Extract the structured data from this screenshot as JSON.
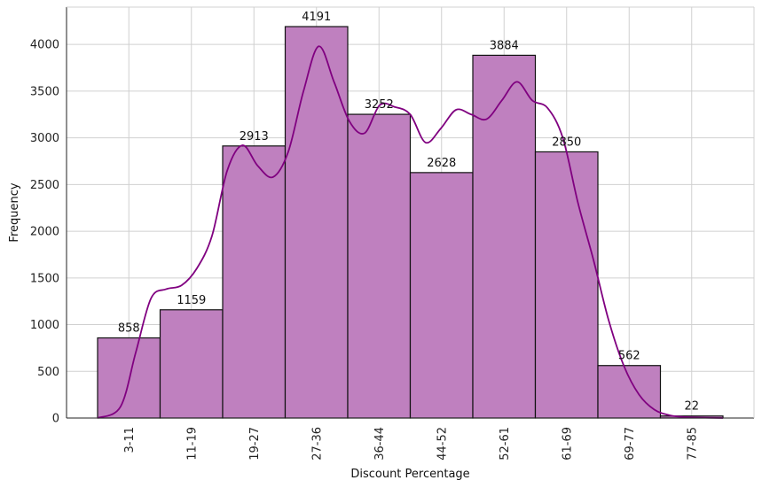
{
  "chart_data": {
    "type": "bar",
    "title": "",
    "xlabel": "Discount Percentage",
    "ylabel": "Frequency",
    "ylim": [
      0,
      4400
    ],
    "yticks": [
      0,
      500,
      1000,
      1500,
      2000,
      2500,
      3000,
      3500,
      4000
    ],
    "grid": true,
    "categories": [
      "3-11",
      "11-19",
      "19-27",
      "27-36",
      "36-44",
      "44-52",
      "52-61",
      "61-69",
      "69-77",
      "77-85"
    ],
    "values": [
      858,
      1159,
      2913,
      4191,
      3252,
      2628,
      3884,
      2850,
      562,
      22
    ],
    "data_labels": [
      "858",
      "1159",
      "2913",
      "4191",
      "3252",
      "2628",
      "3884",
      "2850",
      "562",
      "22"
    ],
    "kde_curve": {
      "x": [
        3,
        6,
        8,
        10,
        12,
        14,
        16,
        18,
        20,
        22,
        24,
        26,
        28,
        30,
        32,
        34,
        36,
        38,
        40,
        42,
        44,
        46,
        48,
        50,
        52,
        54,
        56,
        58,
        60,
        62,
        64,
        66,
        68,
        70,
        72,
        74,
        76,
        78,
        80,
        82,
        85
      ],
      "y": [
        0,
        120,
        700,
        1280,
        1380,
        1420,
        1600,
        1950,
        2650,
        2920,
        2700,
        2580,
        2850,
        3500,
        3980,
        3600,
        3180,
        3050,
        3350,
        3330,
        3250,
        2950,
        3100,
        3300,
        3250,
        3200,
        3400,
        3600,
        3400,
        3320,
        3000,
        2300,
        1700,
        1050,
        560,
        250,
        90,
        30,
        10,
        5,
        0
      ]
    },
    "colors": {
      "bar_fill": "#bf80bf",
      "bar_edge": "#111111",
      "kde_line": "#800080",
      "grid": "#d0d0d0"
    }
  }
}
